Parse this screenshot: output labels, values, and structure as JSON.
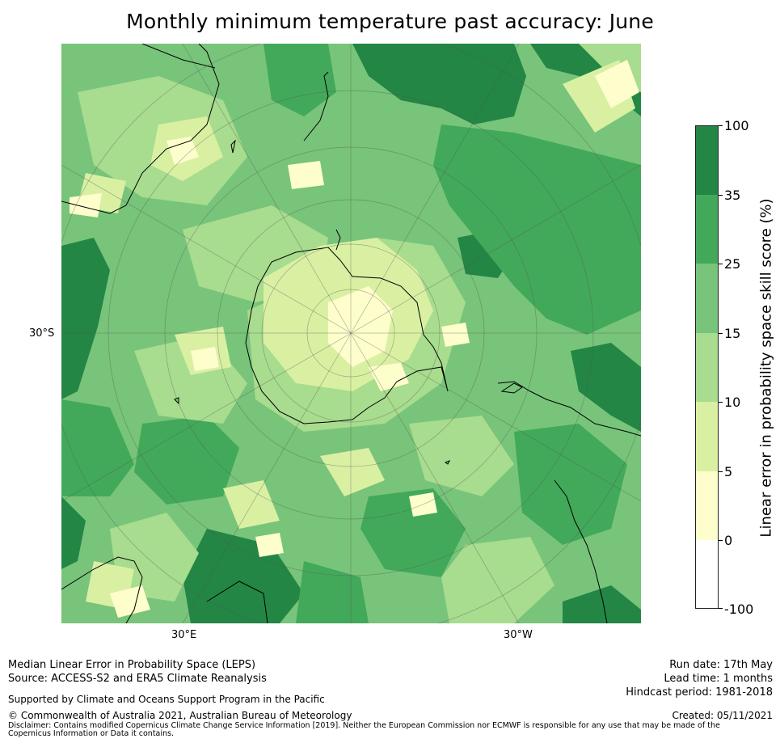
{
  "title": "Monthly minimum temperature past accuracy: June",
  "map": {
    "projection": "south polar stereographic",
    "lat_labels": [
      "30°S"
    ],
    "lon_labels": [
      "30°E",
      "30°W"
    ],
    "palette": {
      "ocean_low": "#fefecd",
      "very_light": "#d9f0a3",
      "light": "#a8dc8e",
      "medium": "#78c47a",
      "mid_dark": "#42a95a",
      "dark": "#238645",
      "coast": "#000000"
    }
  },
  "colorbar": {
    "title": "Linear error in probability space skill score (%)",
    "ticks": [
      "100",
      "35",
      "25",
      "15",
      "10",
      "5",
      "0",
      "-100"
    ],
    "bins": [
      {
        "from": 35,
        "to": 100,
        "color": "#238645"
      },
      {
        "from": 25,
        "to": 35,
        "color": "#42a95a"
      },
      {
        "from": 15,
        "to": 25,
        "color": "#78c47a"
      },
      {
        "from": 10,
        "to": 15,
        "color": "#a8dc8e"
      },
      {
        "from": 5,
        "to": 10,
        "color": "#d9f0a3"
      },
      {
        "from": 0,
        "to": 5,
        "color": "#fefecd"
      },
      {
        "from": -100,
        "to": 0,
        "color": "#ffffff"
      }
    ]
  },
  "footer": {
    "left_line1": "Median Linear Error in Probability Space (LEPS)",
    "left_line2": "Source: ACCESS-S2 and ERA5 Climate Reanalysis",
    "support": "Supported by Climate and Oceans Support Program in the Pacific",
    "copyright": "© Commonwealth of Australia 2021, Australian Bureau of Meteorology",
    "disclaimer": "Disclaimer: Contains modified Copernicus Climate Change Service Information [2019]. Neither the European Commission nor ECMWF is responsible for any use that may be made of the Copernicus Information or Data it contains.",
    "run_date": "Run date: 17th May",
    "lead_time": "Lead time: 1 months",
    "hindcast": "Hindcast period: 1981-2018",
    "created": "Created: 05/11/2021"
  }
}
